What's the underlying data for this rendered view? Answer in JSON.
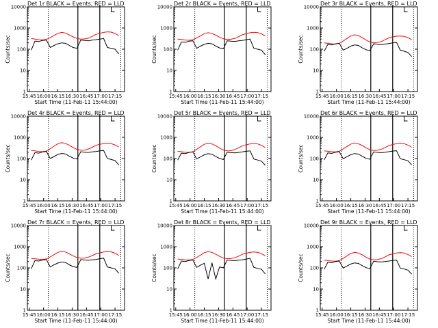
{
  "chart_data": {
    "type": "line",
    "layout_grid": {
      "rows": 3,
      "cols": 3
    },
    "y_scale": "log",
    "ylim": [
      1,
      10000
    ],
    "ylabel": "Counts/sec",
    "y_tick_labels": [
      "1",
      "10",
      "100",
      "1000",
      "10000"
    ],
    "x_tick_labels_left_col": [
      "15:45",
      "16:00",
      "16:15",
      "16:30",
      "16:45",
      "17:00",
      "17:15"
    ],
    "x_tick_labels_other": [
      "15:45",
      "16:00",
      "16:15",
      "16:30",
      "16:45",
      "17:00",
      "17:15"
    ],
    "xlabel": "Start Time (11-Feb-11 15:44:00)",
    "colors": {
      "events": "#000000",
      "lld": "#ff0000"
    },
    "panels": [
      {
        "title": "Det 1r BLACK = Events, RED = LLD",
        "lld": [
          320,
          300,
          280,
          275,
          290,
          350,
          450,
          560,
          620,
          580,
          470,
          380,
          320,
          300,
          305,
          330,
          400,
          500,
          560,
          620,
          660,
          640,
          550,
          440
        ],
        "events": [
          90,
          240,
          230,
          260,
          270,
          120,
          150,
          180,
          200,
          190,
          150,
          120,
          110,
          270,
          260,
          250,
          270,
          280,
          300,
          320,
          120,
          110,
          100,
          60
        ]
      },
      {
        "title": "Det 2r BLACK = Events, RED = LLD",
        "lld": [
          300,
          290,
          270,
          265,
          280,
          340,
          430,
          540,
          600,
          560,
          460,
          370,
          310,
          290,
          295,
          320,
          390,
          480,
          540,
          600,
          630,
          610,
          530,
          420
        ],
        "events": [
          90,
          220,
          210,
          240,
          250,
          110,
          140,
          170,
          190,
          180,
          140,
          115,
          105,
          250,
          240,
          230,
          250,
          260,
          280,
          300,
          110,
          100,
          90,
          55
        ]
      },
      {
        "title": "Det 3r BLACK = Events, RED = LLD",
        "lld": [
          200,
          190,
          180,
          175,
          190,
          240,
          320,
          420,
          480,
          440,
          350,
          270,
          220,
          200,
          205,
          230,
          280,
          340,
          380,
          410,
          420,
          400,
          350,
          280
        ],
        "events": [
          80,
          170,
          160,
          180,
          190,
          90,
          110,
          140,
          160,
          150,
          115,
          95,
          85,
          180,
          170,
          165,
          175,
          185,
          200,
          210,
          90,
          80,
          70,
          45
        ]
      },
      {
        "title": "Det 4r BLACK = Events, RED = LLD",
        "lld": [
          240,
          230,
          215,
          210,
          225,
          290,
          380,
          500,
          560,
          520,
          420,
          330,
          270,
          245,
          250,
          280,
          340,
          420,
          470,
          510,
          530,
          510,
          440,
          350
        ],
        "events": [
          85,
          190,
          180,
          205,
          215,
          100,
          125,
          155,
          175,
          165,
          130,
          105,
          95,
          210,
          200,
          195,
          205,
          215,
          230,
          240,
          100,
          90,
          80,
          50
        ]
      },
      {
        "title": "Det 5r BLACK = Events, RED = LLD",
        "lld": [
          220,
          210,
          200,
          195,
          210,
          270,
          360,
          470,
          530,
          490,
          400,
          310,
          255,
          230,
          235,
          265,
          320,
          400,
          450,
          490,
          510,
          490,
          420,
          330
        ],
        "events": [
          85,
          180,
          170,
          195,
          205,
          95,
          120,
          150,
          170,
          160,
          125,
          100,
          90,
          200,
          190,
          185,
          195,
          205,
          220,
          230,
          95,
          85,
          75,
          48
        ]
      },
      {
        "title": "Det 6r BLACK = Events, RED = LLD",
        "lld": [
          230,
          220,
          210,
          205,
          220,
          280,
          370,
          480,
          540,
          500,
          410,
          320,
          260,
          240,
          245,
          275,
          330,
          410,
          460,
          500,
          520,
          500,
          430,
          340
        ],
        "events": [
          85,
          185,
          175,
          200,
          210,
          98,
          122,
          152,
          172,
          162,
          128,
          102,
          92,
          205,
          195,
          190,
          200,
          210,
          225,
          235,
          98,
          88,
          78,
          50
        ]
      },
      {
        "title": "Det 7r BLACK = Events, RED = LLD",
        "lld": [
          280,
          270,
          255,
          250,
          265,
          330,
          420,
          540,
          600,
          560,
          460,
          370,
          310,
          285,
          290,
          320,
          380,
          460,
          510,
          560,
          590,
          570,
          490,
          390
        ],
        "events": [
          90,
          220,
          210,
          235,
          245,
          110,
          140,
          170,
          190,
          180,
          140,
          115,
          105,
          245,
          235,
          230,
          240,
          250,
          270,
          290,
          110,
          100,
          90,
          55
        ]
      },
      {
        "title": "Det 8r BLACK = Events, RED = LLD",
        "lld": [
          260,
          250,
          240,
          235,
          250,
          310,
          400,
          520,
          580,
          540,
          440,
          350,
          290,
          270,
          275,
          300,
          360,
          440,
          490,
          540,
          560,
          540,
          470,
          370
        ],
        "events": [
          90,
          210,
          200,
          225,
          235,
          105,
          135,
          165,
          30,
          175,
          30,
          110,
          100,
          235,
          225,
          220,
          230,
          240,
          260,
          280,
          105,
          95,
          85,
          52
        ]
      },
      {
        "title": "Det 9r BLACK = Events, RED = LLD",
        "lld": [
          230,
          220,
          210,
          205,
          220,
          280,
          370,
          480,
          540,
          500,
          410,
          320,
          260,
          240,
          245,
          275,
          330,
          410,
          460,
          500,
          520,
          500,
          430,
          340
        ],
        "events": [
          85,
          185,
          175,
          200,
          210,
          98,
          122,
          152,
          172,
          162,
          128,
          102,
          92,
          205,
          195,
          190,
          200,
          210,
          225,
          235,
          98,
          88,
          78,
          50
        ]
      }
    ]
  }
}
